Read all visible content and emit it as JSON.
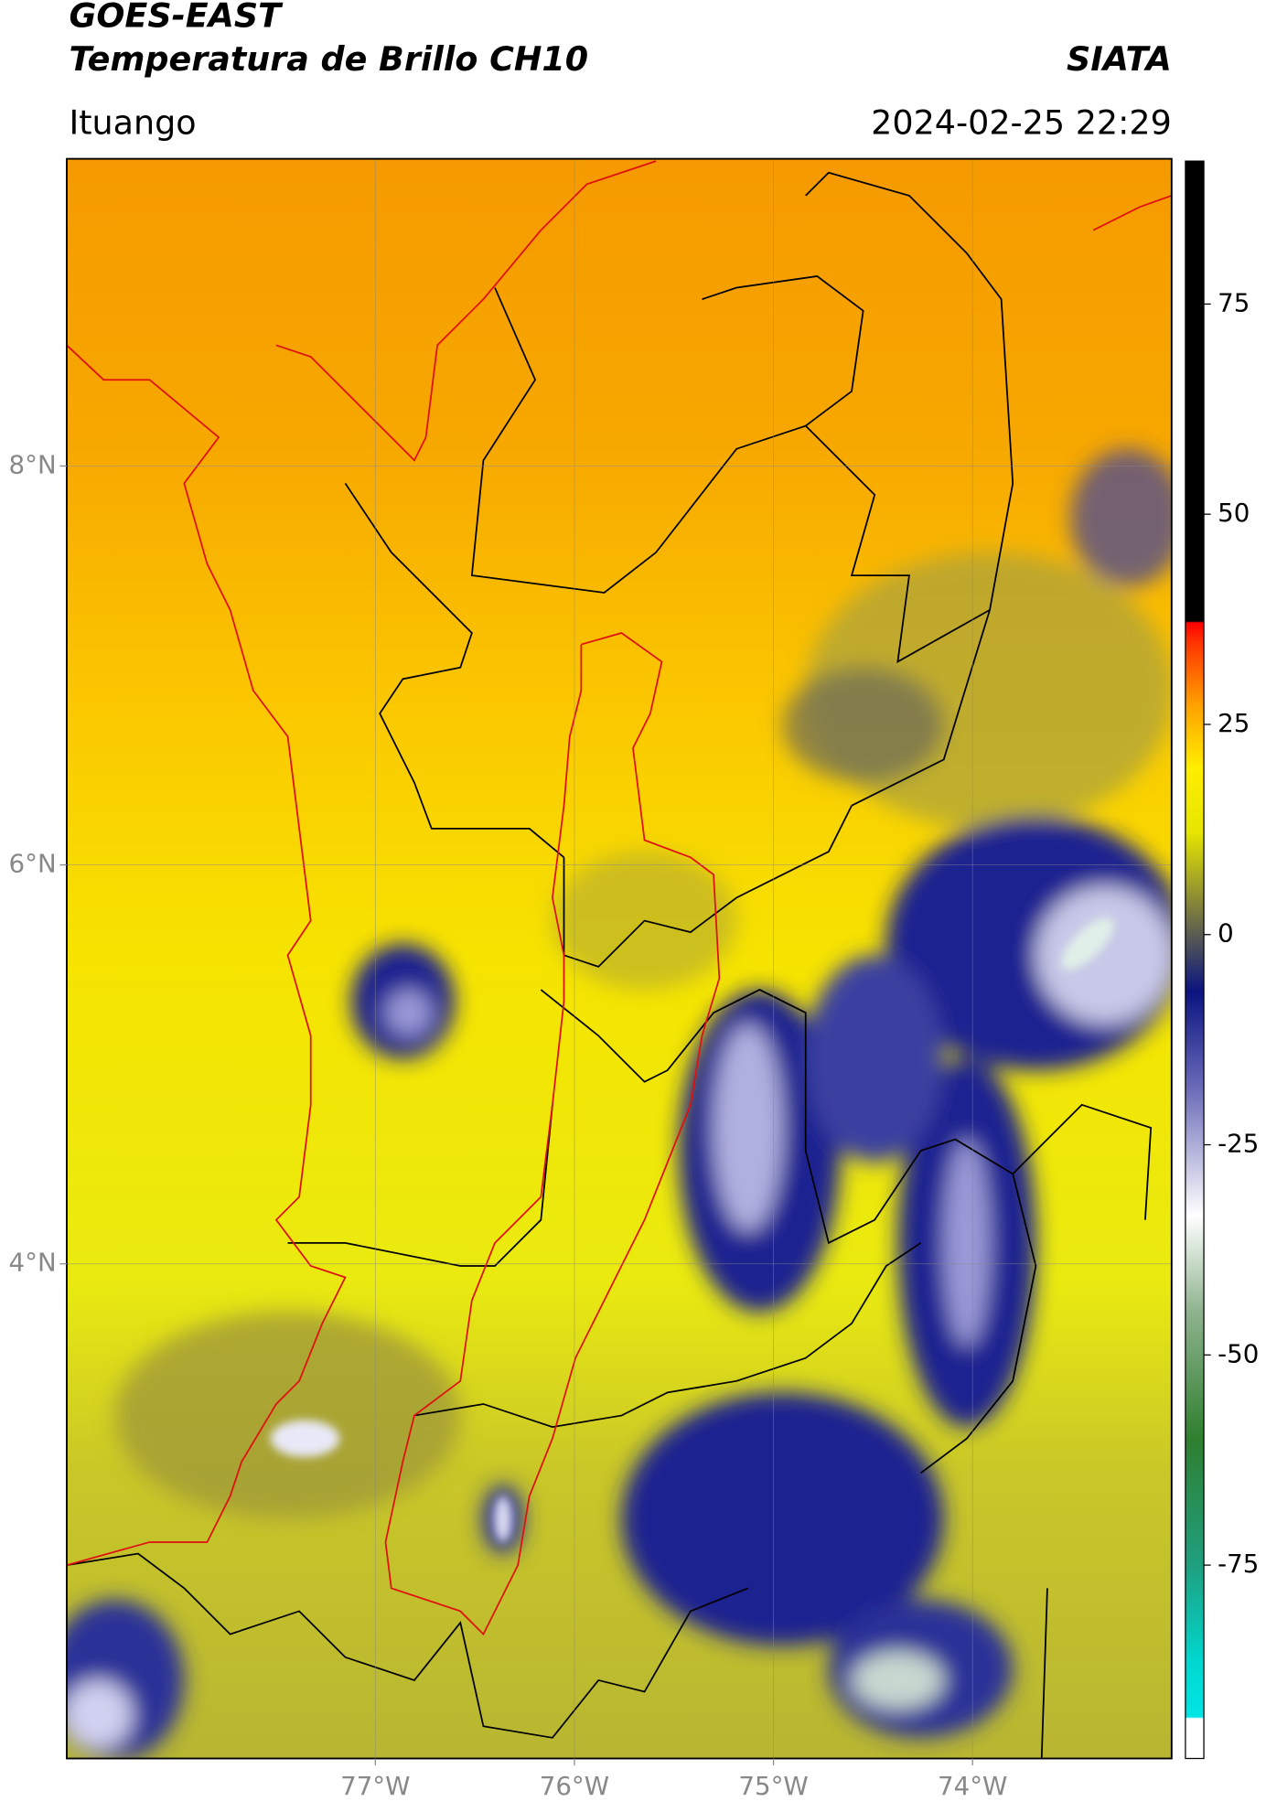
{
  "header": {
    "title": "GOES-EAST",
    "subtitle": "Temperatura de Brillo CH10",
    "brand": "SIATA",
    "location": "Ituango",
    "datetime": "2024-02-25 22:29"
  },
  "map": {
    "xlim": [
      -78.55,
      -73.0
    ],
    "ylim": [
      1.52,
      9.54
    ],
    "xticks": [
      {
        "value": -77,
        "label": "77°W"
      },
      {
        "value": -76,
        "label": "76°W"
      },
      {
        "value": -75,
        "label": "75°W"
      },
      {
        "value": -74,
        "label": "74°W"
      }
    ],
    "yticks": [
      {
        "value": 8,
        "label": "8°N"
      },
      {
        "value": 6,
        "label": "6°N"
      },
      {
        "value": 4,
        "label": "4°N"
      }
    ],
    "grid": true
  },
  "colorbar": {
    "lim": [
      -98,
      92
    ],
    "ticks": [
      75,
      50,
      25,
      0,
      -25,
      -50,
      -75
    ]
  }
}
